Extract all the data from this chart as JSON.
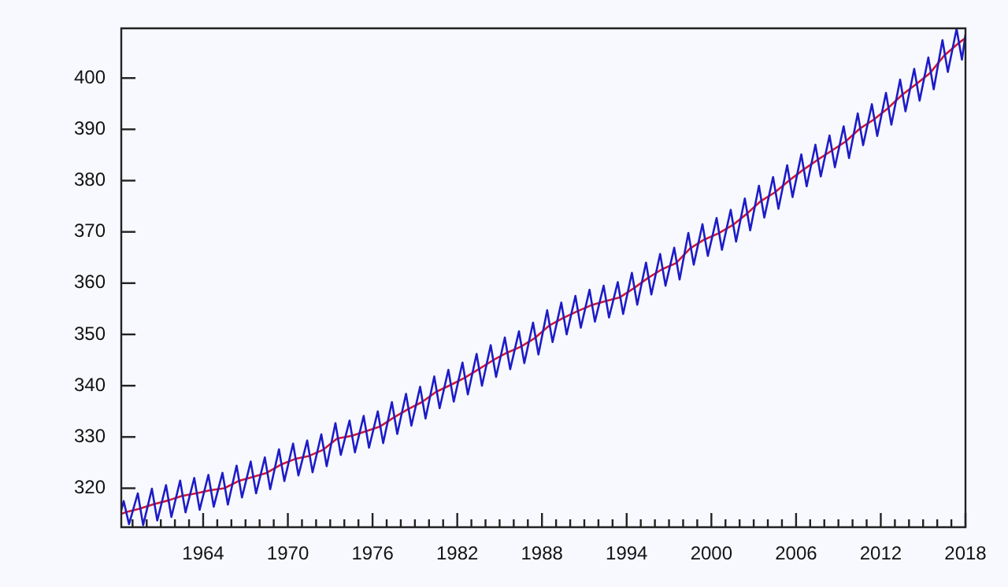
{
  "chart_data": {
    "type": "line",
    "xlim": [
      1958.2,
      2018.0
    ],
    "ylim": [
      312.4,
      409.7
    ],
    "xticks": [
      {
        "value": 1959,
        "label": null
      },
      {
        "value": 1960,
        "label": null
      },
      {
        "value": 1961,
        "label": null
      },
      {
        "value": 1962,
        "label": null
      },
      {
        "value": 1963,
        "label": null
      },
      1964,
      {
        "value": 1965,
        "label": null
      },
      {
        "value": 1966,
        "label": null
      },
      {
        "value": 1967,
        "label": null
      },
      {
        "value": 1968,
        "label": null
      },
      {
        "value": 1969,
        "label": null
      },
      1970,
      {
        "value": 1971,
        "label": null
      },
      {
        "value": 1972,
        "label": null
      },
      {
        "value": 1973,
        "label": null
      },
      {
        "value": 1974,
        "label": null
      },
      {
        "value": 1975,
        "label": null
      },
      1976,
      {
        "value": 1977,
        "label": null
      },
      {
        "value": 1978,
        "label": null
      },
      {
        "value": 1979,
        "label": null
      },
      {
        "value": 1980,
        "label": null
      },
      {
        "value": 1981,
        "label": null
      },
      1982,
      {
        "value": 1983,
        "label": null
      },
      {
        "value": 1984,
        "label": null
      },
      {
        "value": 1985,
        "label": null
      },
      {
        "value": 1986,
        "label": null
      },
      {
        "value": 1987,
        "label": null
      },
      1988,
      {
        "value": 1989,
        "label": null
      },
      {
        "value": 1990,
        "label": null
      },
      {
        "value": 1991,
        "label": null
      },
      {
        "value": 1992,
        "label": null
      },
      {
        "value": 1993,
        "label": null
      },
      1994,
      {
        "value": 1995,
        "label": null
      },
      {
        "value": 1996,
        "label": null
      },
      {
        "value": 1997,
        "label": null
      },
      {
        "value": 1998,
        "label": null
      },
      {
        "value": 1999,
        "label": null
      },
      2000,
      {
        "value": 2001,
        "label": null
      },
      {
        "value": 2002,
        "label": null
      },
      {
        "value": 2003,
        "label": null
      },
      {
        "value": 2004,
        "label": null
      },
      {
        "value": 2005,
        "label": null
      },
      2006,
      {
        "value": 2007,
        "label": null
      },
      {
        "value": 2008,
        "label": null
      },
      {
        "value": 2009,
        "label": null
      },
      {
        "value": 2010,
        "label": null
      },
      {
        "value": 2011,
        "label": null
      },
      2012,
      {
        "value": 2013,
        "label": null
      },
      {
        "value": 2014,
        "label": null
      },
      {
        "value": 2015,
        "label": null
      },
      {
        "value": 2016,
        "label": null
      },
      {
        "value": 2017,
        "label": null
      },
      2018
    ],
    "yticks": [
      320,
      330,
      340,
      350,
      360,
      370,
      380,
      390,
      400
    ],
    "grid": false,
    "legend": false,
    "marker": "none",
    "line_style": "solid",
    "series": [
      {
        "color": "#1c1cc8",
        "x": [
          1958.2,
          1958.37,
          1958.75,
          1959.37,
          1959.75,
          1960.37,
          1960.75,
          1961.37,
          1961.75,
          1962.37,
          1962.75,
          1963.37,
          1963.75,
          1964.37,
          1964.75,
          1965.37,
          1965.75,
          1966.37,
          1966.75,
          1967.37,
          1967.75,
          1968.37,
          1968.75,
          1969.37,
          1969.75,
          1970.37,
          1970.75,
          1971.37,
          1971.75,
          1972.37,
          1972.75,
          1973.37,
          1973.75,
          1974.37,
          1974.75,
          1975.37,
          1975.75,
          1976.37,
          1976.75,
          1977.37,
          1977.75,
          1978.37,
          1978.75,
          1979.37,
          1979.75,
          1980.37,
          1980.75,
          1981.37,
          1981.75,
          1982.37,
          1982.75,
          1983.37,
          1983.75,
          1984.37,
          1984.75,
          1985.37,
          1985.75,
          1986.37,
          1986.75,
          1987.37,
          1987.75,
          1988.37,
          1988.75,
          1989.37,
          1989.75,
          1990.37,
          1990.75,
          1991.37,
          1991.75,
          1992.37,
          1992.75,
          1993.37,
          1993.75,
          1994.37,
          1994.75,
          1995.37,
          1995.75,
          1996.37,
          1996.75,
          1997.37,
          1997.75,
          1998.37,
          1998.75,
          1999.37,
          1999.75,
          2000.37,
          2000.75,
          2001.37,
          2001.75,
          2002.37,
          2002.75,
          2003.37,
          2003.75,
          2004.37,
          2004.75,
          2005.37,
          2005.75,
          2006.37,
          2006.75,
          2007.37,
          2007.75,
          2008.37,
          2008.75,
          2009.37,
          2009.75,
          2010.37,
          2010.75,
          2011.37,
          2011.75,
          2012.37,
          2012.75,
          2013.37,
          2013.75,
          2014.37,
          2014.75,
          2015.37,
          2015.75,
          2016.37,
          2016.75,
          2017.37,
          2017.75,
          2018.0
        ],
        "values": [
          315.7,
          317.5,
          313.0,
          319.0,
          312.8,
          319.9,
          313.7,
          320.6,
          314.4,
          321.5,
          315.3,
          322.0,
          315.8,
          322.6,
          316.4,
          323.0,
          316.8,
          324.4,
          318.2,
          325.2,
          319.0,
          326.0,
          319.8,
          327.6,
          321.4,
          328.7,
          322.5,
          329.3,
          323.1,
          330.5,
          324.3,
          332.7,
          326.5,
          333.2,
          327.0,
          334.1,
          327.9,
          335.0,
          328.8,
          336.8,
          330.6,
          338.4,
          332.2,
          339.8,
          333.6,
          341.8,
          335.6,
          343.1,
          336.9,
          344.5,
          338.3,
          346.2,
          340.0,
          347.9,
          341.7,
          349.4,
          343.2,
          350.6,
          344.4,
          352.3,
          346.1,
          354.7,
          348.5,
          356.2,
          350.0,
          357.5,
          351.3,
          358.7,
          352.5,
          359.5,
          353.3,
          360.2,
          354.0,
          362.0,
          355.8,
          364.0,
          357.8,
          365.7,
          359.5,
          366.9,
          360.7,
          369.8,
          363.6,
          371.5,
          365.3,
          372.7,
          366.5,
          374.3,
          368.1,
          376.5,
          370.3,
          379.0,
          372.8,
          380.7,
          374.5,
          383.0,
          376.8,
          385.1,
          378.9,
          387.0,
          380.8,
          388.8,
          382.6,
          390.6,
          384.4,
          393.1,
          386.9,
          394.9,
          388.7,
          397.1,
          390.9,
          399.7,
          393.5,
          401.8,
          395.6,
          404.0,
          397.8,
          407.4,
          401.2,
          409.6,
          403.6,
          408.5
        ]
      },
      {
        "color": "#d01830",
        "x": [
          1958.2,
          1958.5,
          1959.5,
          1960.5,
          1961.5,
          1962.5,
          1963.5,
          1964.5,
          1965.5,
          1966.5,
          1967.5,
          1968.5,
          1969.5,
          1970.5,
          1971.5,
          1972.5,
          1973.5,
          1974.5,
          1975.5,
          1976.5,
          1977.5,
          1978.5,
          1979.5,
          1980.5,
          1981.5,
          1982.5,
          1983.5,
          1984.5,
          1985.5,
          1986.5,
          1987.5,
          1988.5,
          1989.5,
          1990.5,
          1991.5,
          1992.5,
          1993.5,
          1994.5,
          1995.5,
          1996.5,
          1997.5,
          1998.5,
          1999.5,
          2000.5,
          2001.5,
          2002.5,
          2003.5,
          2004.5,
          2005.5,
          2006.5,
          2007.5,
          2008.5,
          2009.5,
          2010.5,
          2011.5,
          2012.5,
          2013.5,
          2014.5,
          2015.5,
          2016.5,
          2017.5,
          2018.0
        ],
        "values": [
          315.0,
          315.3,
          316.0,
          316.9,
          317.6,
          318.5,
          319.0,
          319.6,
          320.0,
          321.4,
          322.2,
          323.0,
          324.6,
          325.7,
          326.3,
          327.5,
          329.7,
          330.2,
          331.1,
          332.0,
          333.8,
          335.4,
          336.8,
          338.8,
          340.1,
          341.5,
          343.2,
          344.9,
          346.4,
          347.6,
          349.3,
          351.7,
          353.2,
          354.5,
          355.7,
          356.5,
          357.2,
          359.0,
          361.0,
          362.7,
          363.9,
          366.8,
          368.5,
          369.7,
          371.3,
          373.5,
          376.0,
          377.7,
          380.0,
          382.1,
          384.0,
          385.8,
          387.6,
          390.1,
          391.9,
          394.1,
          396.7,
          398.8,
          401.0,
          404.4,
          406.8,
          407.8
        ]
      }
    ]
  }
}
